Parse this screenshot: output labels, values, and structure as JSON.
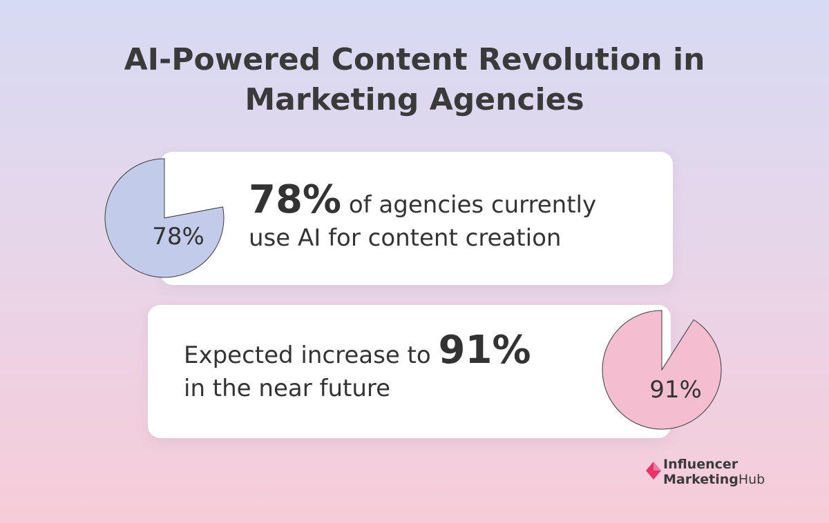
{
  "title": {
    "line1": "AI-Powered Content Revolution in",
    "line2": "Marketing Agencies"
  },
  "stats": [
    {
      "big": "78%",
      "text_line1": " of agencies currently",
      "text_line2": "use AI for content creation",
      "pie_label": "78%"
    },
    {
      "text_line1": "Expected increase to ",
      "big": "91%",
      "text_line2": "in the near future",
      "pie_label": "91%"
    }
  ],
  "chart_data": [
    {
      "type": "pie",
      "values": [
        78,
        22
      ],
      "labels": [
        "78%",
        ""
      ],
      "colors": [
        "#c2cbe9",
        "#ffffff"
      ]
    },
    {
      "type": "pie",
      "values": [
        91,
        9
      ],
      "labels": [
        "91%",
        ""
      ],
      "colors": [
        "#f4bdd0",
        "#ffffff"
      ]
    }
  ],
  "brand": {
    "line1": "Influencer",
    "line2_a": "Marketing",
    "line2_b": "Hub",
    "accent": "#e8336b",
    "icon": "diamond-logo-icon"
  }
}
